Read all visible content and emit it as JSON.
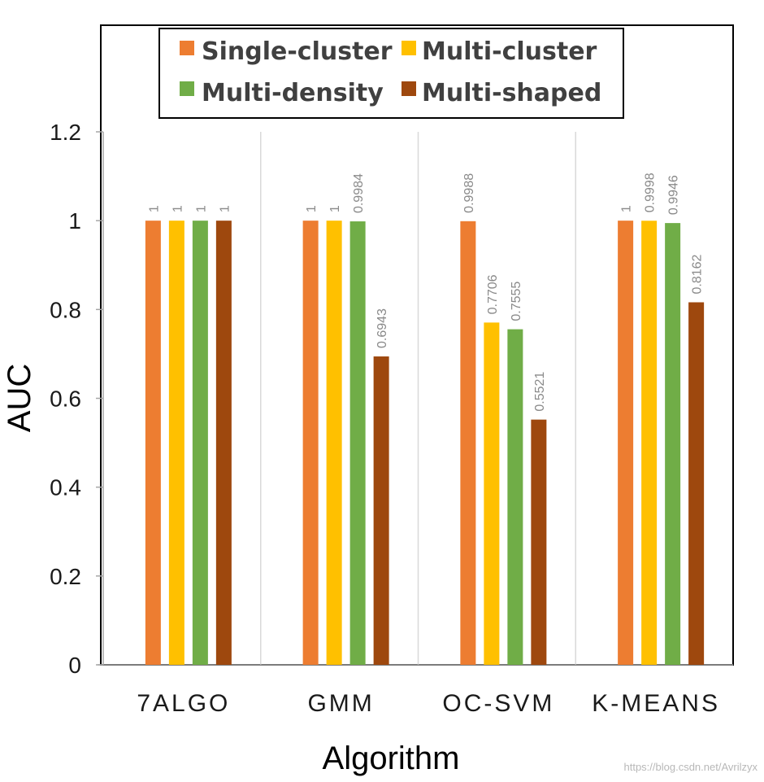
{
  "colors": {
    "single_cluster": "#ED7D31",
    "multi_cluster": "#FFC000",
    "multi_density": "#70AD47",
    "multi_shaped": "#9E480E"
  },
  "chart_data": {
    "type": "bar",
    "title": "",
    "xlabel": "Algorithm",
    "ylabel": "AUC",
    "ylim": [
      0,
      1.2
    ],
    "yticks": [
      "0",
      "0.2",
      "0.4",
      "0.6",
      "0.8",
      "1",
      "1.2"
    ],
    "ytick_values": [
      0,
      0.2,
      0.4,
      0.6,
      0.8,
      1.0,
      1.2
    ],
    "categories": [
      "7ALGO",
      "GMM",
      "OC-SVM",
      "K-MEANS"
    ],
    "legend_position": "top",
    "grid": "vertical separators between categories",
    "series": [
      {
        "name": "Single-cluster",
        "color_key": "single_cluster",
        "values": [
          1,
          1,
          0.9988,
          1
        ],
        "labels": [
          "1",
          "1",
          "0.9988",
          "1"
        ]
      },
      {
        "name": "Multi-cluster",
        "color_key": "multi_cluster",
        "values": [
          1,
          1,
          0.7706,
          0.9998
        ],
        "labels": [
          "1",
          "1",
          "0.7706",
          "0.9998"
        ]
      },
      {
        "name": "Multi-density",
        "color_key": "multi_density",
        "values": [
          1,
          0.9984,
          0.7555,
          0.9946
        ],
        "labels": [
          "1",
          "0.9984",
          "0.7555",
          "0.9946"
        ]
      },
      {
        "name": "Multi-shaped",
        "color_key": "multi_shaped",
        "values": [
          1,
          0.6943,
          0.5521,
          0.8162
        ],
        "labels": [
          "1",
          "0.6943",
          "0.5521",
          "0.8162"
        ]
      }
    ]
  },
  "watermark": "https://blog.csdn.net/Avrilzyx"
}
